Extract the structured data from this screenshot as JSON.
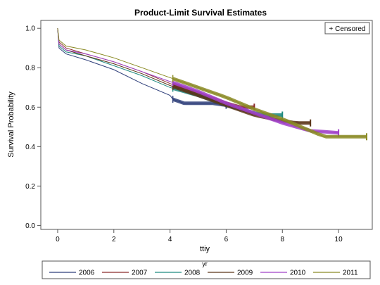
{
  "chart_data": {
    "type": "line",
    "title": "Product-Limit Survival Estimates",
    "xlabel": "ttiy",
    "ylabel": "Survival Probability",
    "xlim": [
      -0.6,
      11.2
    ],
    "ylim": [
      -0.02,
      1.04
    ],
    "xticks": [
      0,
      2,
      4,
      6,
      8,
      10
    ],
    "yticks": [
      0.0,
      0.2,
      0.4,
      0.6,
      0.8,
      1.0
    ],
    "xtick_labels": [
      "0",
      "2",
      "4",
      "6",
      "8",
      "10"
    ],
    "ytick_labels": [
      "0.0",
      "0.2",
      "0.4",
      "0.6",
      "0.8",
      "1.0"
    ],
    "censored_label": "+ Censored",
    "legend_title": "yr",
    "legend_position": "bottom",
    "grid": false,
    "series": [
      {
        "name": "2006",
        "color": "#2f3f7a",
        "points": [
          [
            0,
            1.0
          ],
          [
            0.05,
            0.9
          ],
          [
            0.3,
            0.87
          ],
          [
            1,
            0.84
          ],
          [
            2,
            0.79
          ],
          [
            3,
            0.72
          ],
          [
            4,
            0.66
          ],
          [
            4.1,
            0.64
          ],
          [
            4.5,
            0.62
          ],
          [
            5,
            0.62
          ],
          [
            5.5,
            0.62
          ],
          [
            6,
            0.61
          ]
        ],
        "censored_ranges": [
          [
            4.1,
            6.0
          ]
        ]
      },
      {
        "name": "2007",
        "color": "#8b2b2b",
        "points": [
          [
            0,
            1.0
          ],
          [
            0.05,
            0.93
          ],
          [
            0.3,
            0.9
          ],
          [
            1,
            0.87
          ],
          [
            2,
            0.83
          ],
          [
            3,
            0.78
          ],
          [
            4,
            0.72
          ],
          [
            5,
            0.67
          ],
          [
            6,
            0.62
          ],
          [
            6.5,
            0.6
          ],
          [
            7,
            0.6
          ]
        ],
        "censored_ranges": [
          [
            4.1,
            7.0
          ]
        ]
      },
      {
        "name": "2008",
        "color": "#1f8a80",
        "points": [
          [
            0,
            1.0
          ],
          [
            0.05,
            0.91
          ],
          [
            0.3,
            0.88
          ],
          [
            1,
            0.86
          ],
          [
            2,
            0.81
          ],
          [
            3,
            0.76
          ],
          [
            4,
            0.7
          ],
          [
            5,
            0.66
          ],
          [
            6,
            0.61
          ],
          [
            7,
            0.57
          ],
          [
            7.5,
            0.56
          ],
          [
            8,
            0.56
          ]
        ],
        "censored_ranges": [
          [
            4.1,
            8.0
          ]
        ]
      },
      {
        "name": "2009",
        "color": "#5a3418",
        "points": [
          [
            0,
            1.0
          ],
          [
            0.05,
            0.92
          ],
          [
            0.3,
            0.89
          ],
          [
            1,
            0.86
          ],
          [
            2,
            0.82
          ],
          [
            3,
            0.77
          ],
          [
            4,
            0.71
          ],
          [
            5,
            0.66
          ],
          [
            6,
            0.61
          ],
          [
            7,
            0.56
          ],
          [
            8,
            0.53
          ],
          [
            8.5,
            0.52
          ],
          [
            9,
            0.52
          ]
        ],
        "censored_ranges": [
          [
            4.1,
            9.0
          ]
        ]
      },
      {
        "name": "2010",
        "color": "#a040c8",
        "points": [
          [
            0,
            1.0
          ],
          [
            0.05,
            0.92
          ],
          [
            0.3,
            0.89
          ],
          [
            1,
            0.87
          ],
          [
            2,
            0.83
          ],
          [
            3,
            0.78
          ],
          [
            4,
            0.73
          ],
          [
            5,
            0.68
          ],
          [
            6,
            0.62
          ],
          [
            7,
            0.57
          ],
          [
            8,
            0.52
          ],
          [
            9,
            0.48
          ],
          [
            10,
            0.47
          ]
        ],
        "censored_ranges": [
          [
            4.1,
            10.0
          ]
        ]
      },
      {
        "name": "2011",
        "color": "#8a8a24",
        "points": [
          [
            0,
            1.0
          ],
          [
            0.05,
            0.94
          ],
          [
            0.3,
            0.91
          ],
          [
            1,
            0.89
          ],
          [
            2,
            0.85
          ],
          [
            3,
            0.8
          ],
          [
            4,
            0.75
          ],
          [
            5,
            0.7
          ],
          [
            6,
            0.65
          ],
          [
            7,
            0.59
          ],
          [
            8,
            0.54
          ],
          [
            9,
            0.48
          ],
          [
            9.5,
            0.45
          ],
          [
            10,
            0.45
          ],
          [
            11,
            0.45
          ]
        ],
        "censored_ranges": [
          [
            4.1,
            11.0
          ]
        ]
      }
    ]
  }
}
